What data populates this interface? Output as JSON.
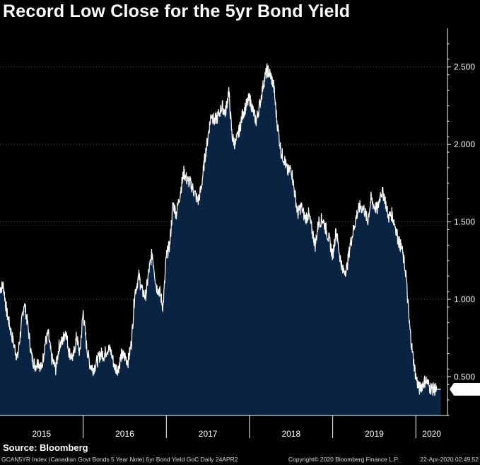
{
  "title": "Record Low Close for the 5yr Bond Yield",
  "source": "Source: Bloomberg",
  "footer": {
    "left": "GCAN5YR Index (Canadian Govt Bonds 5 Year Note) 5yr Bond Yield GoC  Daily 24APR2",
    "copyright": "Copyright© 2020 Bloomberg Finance L.P.",
    "timestamp": "22-Apr-2020 02:49:52"
  },
  "chart_data": {
    "type": "area",
    "title": "Record Low Close for the 5yr Bond Yield",
    "ylim": [
      0.25,
      2.75
    ],
    "y_ticks": [
      "0.500",
      "1.000",
      "1.500",
      "2.000",
      "2.500"
    ],
    "y_axis_side": "right",
    "x_tick_labels": [
      "2015",
      "2016",
      "2017",
      "2018",
      "2019",
      "2020"
    ],
    "last_value_label": "0.419",
    "colors": {
      "area": "#0b2342",
      "line": "#ffffff",
      "background": "#000000"
    },
    "series": [
      {
        "x": [
          2015.0,
          2015.04,
          2015.08,
          2015.12,
          2015.17,
          2015.21,
          2015.25,
          2015.29,
          2015.33,
          2015.38,
          2015.42,
          2015.46,
          2015.5,
          2015.54,
          2015.58,
          2015.62,
          2015.67,
          2015.71,
          2015.75,
          2015.79,
          2015.83,
          2015.88,
          2015.92,
          2015.96,
          2016.0,
          2016.04,
          2016.08,
          2016.12,
          2016.17,
          2016.21,
          2016.25,
          2016.29,
          2016.33,
          2016.38,
          2016.42,
          2016.46,
          2016.5,
          2016.54,
          2016.58,
          2016.62,
          2016.67,
          2016.71,
          2016.75,
          2016.79,
          2016.83,
          2016.88,
          2016.92,
          2016.96,
          2017.0,
          2017.04,
          2017.08,
          2017.12,
          2017.17,
          2017.21,
          2017.25,
          2017.29,
          2017.33,
          2017.38,
          2017.42,
          2017.46,
          2017.5,
          2017.54,
          2017.58,
          2017.62,
          2017.67,
          2017.71,
          2017.75,
          2017.79,
          2017.83,
          2017.88,
          2017.92,
          2017.96,
          2018.0,
          2018.04,
          2018.08,
          2018.12,
          2018.17,
          2018.21,
          2018.25,
          2018.29,
          2018.33,
          2018.38,
          2018.42,
          2018.46,
          2018.5,
          2018.54,
          2018.58,
          2018.62,
          2018.67,
          2018.71,
          2018.75,
          2018.79,
          2018.83,
          2018.88,
          2018.92,
          2018.96,
          2019.0,
          2019.04,
          2019.08,
          2019.12,
          2019.17,
          2019.21,
          2019.25,
          2019.29,
          2019.33,
          2019.38,
          2019.42,
          2019.46,
          2019.5,
          2019.54,
          2019.58,
          2019.62,
          2019.67,
          2019.71,
          2019.75,
          2019.79,
          2019.83,
          2019.88,
          2019.92,
          2019.96,
          2020.0,
          2020.04,
          2020.08,
          2020.12,
          2020.17,
          2020.21,
          2020.25,
          2020.3
        ],
        "y": [
          1.07,
          1.09,
          0.92,
          0.82,
          0.7,
          0.62,
          0.8,
          0.98,
          0.85,
          0.63,
          0.57,
          0.6,
          0.55,
          0.71,
          0.78,
          0.62,
          0.55,
          0.7,
          0.73,
          0.8,
          0.66,
          0.62,
          0.76,
          0.65,
          0.92,
          0.7,
          0.58,
          0.55,
          0.6,
          0.65,
          0.64,
          0.68,
          0.67,
          0.56,
          0.55,
          0.64,
          0.63,
          0.6,
          0.72,
          1.04,
          1.15,
          1.05,
          1.02,
          1.18,
          1.3,
          1.08,
          1.05,
          0.95,
          1.28,
          1.35,
          1.62,
          1.55,
          1.7,
          1.82,
          1.77,
          1.75,
          1.7,
          1.63,
          1.72,
          1.9,
          2.05,
          2.2,
          2.15,
          2.18,
          2.25,
          2.2,
          2.35,
          2.05,
          2.0,
          2.1,
          2.2,
          2.25,
          2.3,
          2.22,
          2.15,
          2.25,
          2.4,
          2.48,
          2.45,
          2.38,
          2.15,
          1.95,
          1.9,
          1.82,
          1.85,
          1.7,
          1.55,
          1.6,
          1.52,
          1.55,
          1.45,
          1.35,
          1.5,
          1.52,
          1.45,
          1.38,
          1.28,
          1.45,
          1.3,
          1.18,
          1.2,
          1.35,
          1.45,
          1.55,
          1.6,
          1.58,
          1.5,
          1.65,
          1.6,
          1.58,
          1.7,
          1.67,
          1.53,
          1.55,
          1.48,
          1.38,
          1.33,
          1.17,
          0.85,
          0.65,
          0.5,
          0.42,
          0.45,
          0.48,
          0.43,
          0.419,
          0.419,
          0.419
        ]
      }
    ]
  }
}
